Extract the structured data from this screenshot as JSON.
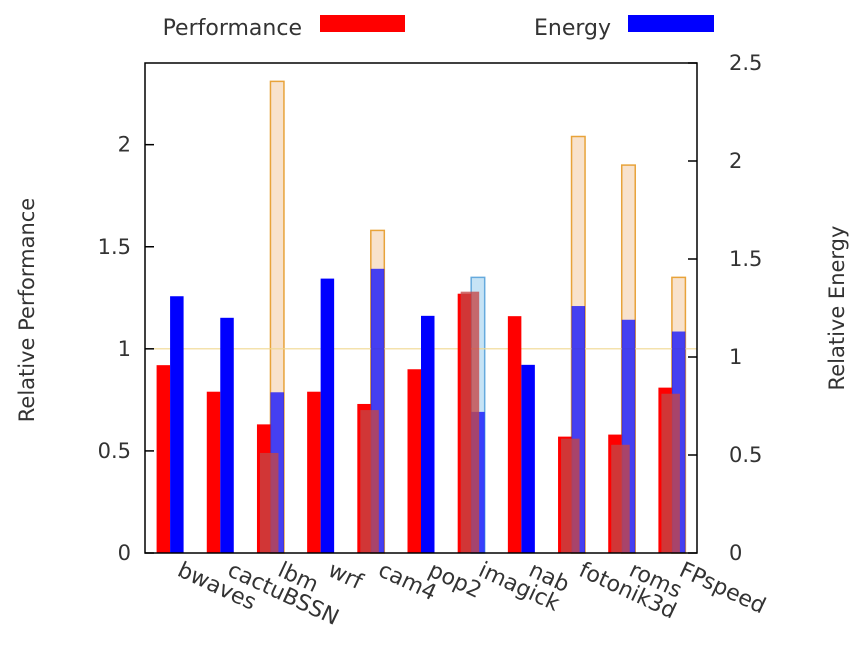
{
  "chart_data": {
    "type": "bar",
    "categories": [
      "bwaves",
      "cactuBSSN",
      "lbm",
      "wrf",
      "cam4",
      "pop2",
      "imagick",
      "nab",
      "fotonik3d",
      "roms",
      "FPspeed"
    ],
    "series": [
      {
        "name": "Performance",
        "axis": "left",
        "color": "#ff0000",
        "values": [
          0.92,
          0.79,
          0.63,
          0.79,
          0.73,
          0.9,
          1.27,
          1.16,
          0.57,
          0.58,
          0.81
        ]
      },
      {
        "name": "Energy",
        "axis": "right",
        "color": "#0000ff",
        "values": [
          1.31,
          1.2,
          0.82,
          1.4,
          1.45,
          1.21,
          0.72,
          0.96,
          1.26,
          1.19,
          1.13
        ]
      }
    ],
    "outline_bars": {
      "values": [
        null,
        null,
        2.31,
        null,
        1.58,
        null,
        1.35,
        null,
        2.04,
        1.9,
        1.35
      ],
      "fill": "#f8e2cc",
      "stroke": "#e8a33a",
      "alt_fill": "#c6e3f5",
      "alt_stroke": "#66aadd",
      "alt_indices": [
        6
      ]
    },
    "inner_bars": {
      "values": [
        null,
        null,
        0.49,
        null,
        0.7,
        null,
        1.28,
        null,
        0.56,
        0.53,
        0.78
      ],
      "color": "#c44545"
    },
    "reference_line": {
      "y": 1,
      "color": "#f0d890"
    },
    "ylabel": "Relative Performance",
    "y2label": "Relative Energy",
    "ylim": [
      0,
      2.4
    ],
    "y2lim": [
      0,
      2.5
    ],
    "yticks": [
      0,
      0.5,
      1,
      1.5,
      2
    ],
    "ytick_labels": [
      "0",
      "0.5",
      "1",
      "1.5",
      "2"
    ],
    "y2ticks": [
      0,
      0.5,
      1,
      1.5,
      2,
      2.5
    ],
    "y2tick_labels": [
      "0",
      "0.5",
      "1",
      "1.5",
      "2",
      "2.5"
    ],
    "legend_position": "top",
    "grid": false
  }
}
